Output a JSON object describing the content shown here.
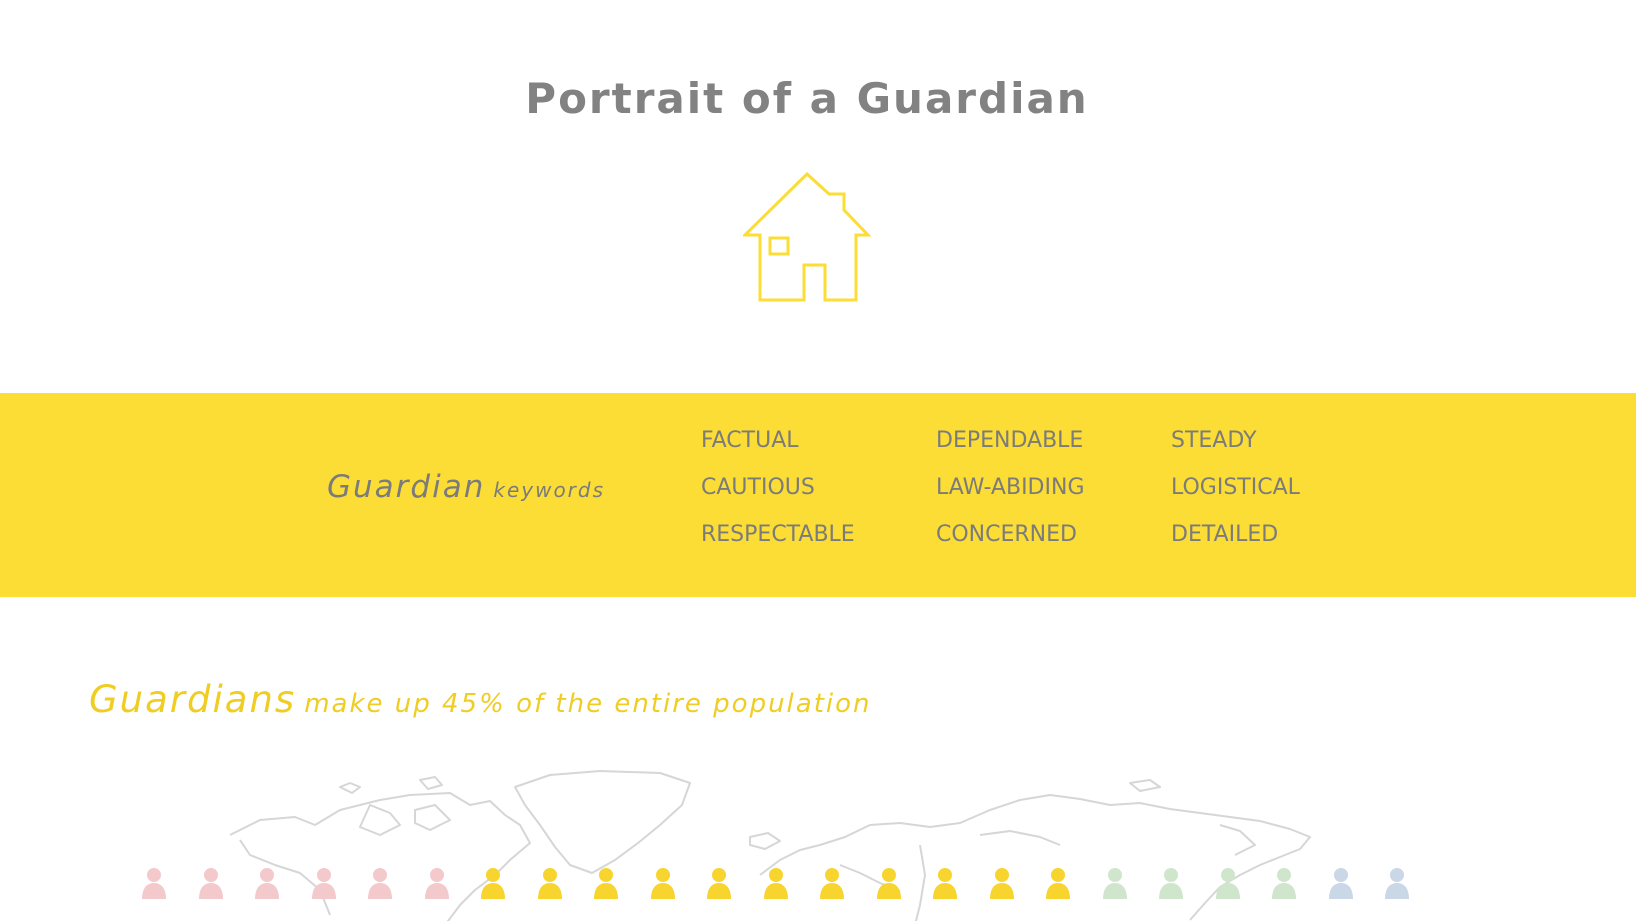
{
  "header": {
    "title": "Portrait of a Guardian",
    "icon": "house-icon",
    "accent_color": "#fbdd35"
  },
  "keywords": {
    "heading": "Guardian",
    "heading_suffix": "keywords",
    "columns": [
      [
        "FACTUAL",
        "CAUTIOUS",
        "RESPECTABLE"
      ],
      [
        "DEPENDABLE",
        "LAW-ABIDING",
        "CONCERNED"
      ],
      [
        "STEADY",
        "LOGISTICAL",
        "DETAILED"
      ]
    ]
  },
  "population": {
    "heading": "Guardians",
    "text": "make up 45% of the entire population",
    "share_percent": 45,
    "map_icon": "world-map",
    "people_icon": "person-icon",
    "people_groups": [
      {
        "color": "#f3c9cc",
        "count": 6
      },
      {
        "color": "#f7d52e",
        "count": 11
      },
      {
        "color": "#cfe6cd",
        "count": 4
      },
      {
        "color": "#c9d7e6",
        "count": 2
      }
    ]
  }
}
